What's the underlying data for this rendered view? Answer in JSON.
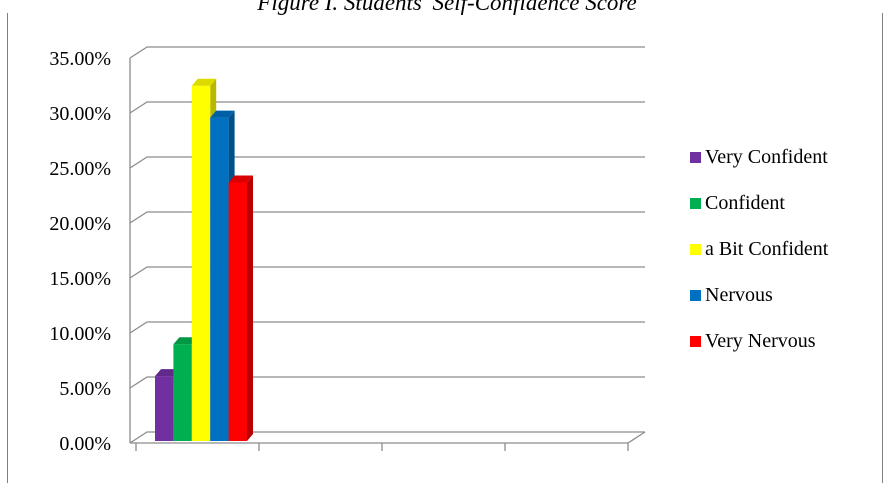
{
  "chart_data": {
    "type": "bar",
    "title": "Figure I. Students' Self-Confidence Score",
    "xlabel": "",
    "ylabel": "",
    "ylim": [
      0,
      0.35
    ],
    "yticks": [
      "0.00%",
      "5.00%",
      "10.00%",
      "15.00%",
      "20.00%",
      "25.00%",
      "30.00%",
      "35.00%"
    ],
    "grid": true,
    "legend_position": "right",
    "categories": [
      ""
    ],
    "series": [
      {
        "name": "Very Confident",
        "values": [
          0.059
        ],
        "color": "#7030a0"
      },
      {
        "name": "Confident",
        "values": [
          0.088
        ],
        "color": "#00b050"
      },
      {
        "name": "a Bit Confident",
        "values": [
          0.323
        ],
        "color": "#ffff00"
      },
      {
        "name": "Nervous",
        "values": [
          0.294
        ],
        "color": "#0070c0"
      },
      {
        "name": "Very Nervous",
        "values": [
          0.235
        ],
        "color": "#ff0000"
      }
    ]
  }
}
